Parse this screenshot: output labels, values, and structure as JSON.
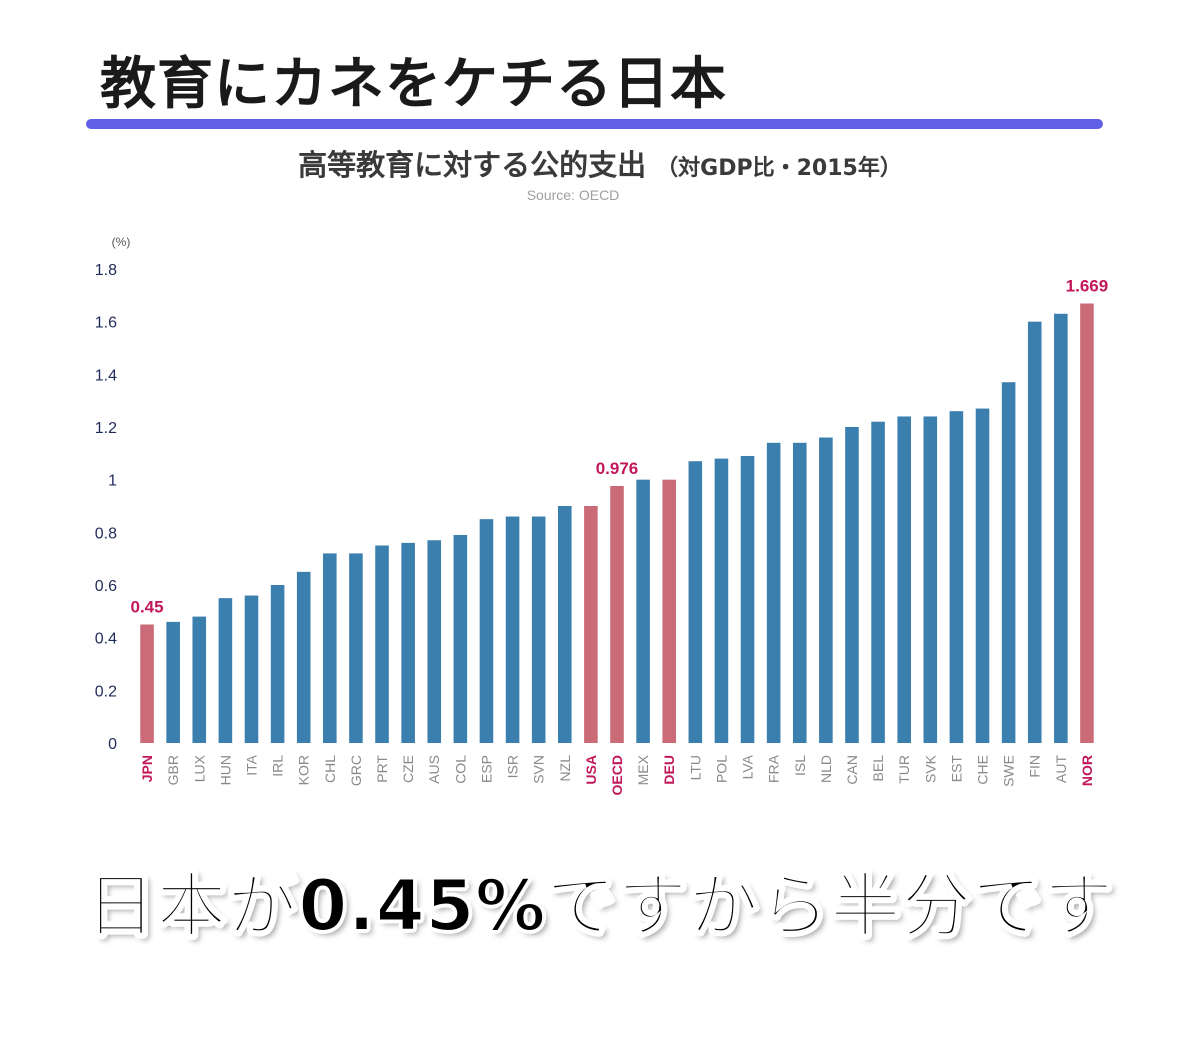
{
  "headline": "教育にカネをケチる日本",
  "chart_title_main": "高等教育に対する公的支出",
  "chart_title_sub": "（対GDP比・2015年）",
  "source": "Source: OECD",
  "caption": "日本が0.45%ですから半分です",
  "colors": {
    "bar_default": "#3a7fad",
    "bar_highlight": "#cc6b78",
    "highlight_text": "#c2185b",
    "rule": "#6060e6"
  },
  "chart_data": {
    "type": "bar",
    "title": "高等教育に対する公的支出（対GDP比・2015年）",
    "ylabel": "(%)",
    "ylim": [
      0,
      1.8
    ],
    "yticks": [
      "0",
      "0.2",
      "0.4",
      "0.6",
      "0.8",
      "1",
      "1.2",
      "1.4",
      "1.6",
      "1.8"
    ],
    "grid": false,
    "categories": [
      "JPN",
      "GBR",
      "LUX",
      "HUN",
      "ITA",
      "IRL",
      "KOR",
      "CHL",
      "GRC",
      "PRT",
      "CZE",
      "AUS",
      "COL",
      "ESP",
      "ISR",
      "SVN",
      "NZL",
      "USA",
      "OECD",
      "MEX",
      "DEU",
      "LTU",
      "POL",
      "LVA",
      "FRA",
      "ISL",
      "NLD",
      "CAN",
      "BEL",
      "TUR",
      "SVK",
      "EST",
      "CHE",
      "SWE",
      "FIN",
      "AUT",
      "NOR"
    ],
    "values": [
      0.45,
      0.46,
      0.48,
      0.55,
      0.56,
      0.6,
      0.65,
      0.72,
      0.72,
      0.75,
      0.76,
      0.77,
      0.79,
      0.85,
      0.86,
      0.86,
      0.9,
      0.9,
      0.976,
      1.0,
      1.0,
      1.07,
      1.08,
      1.09,
      1.14,
      1.14,
      1.16,
      1.2,
      1.22,
      1.24,
      1.24,
      1.26,
      1.27,
      1.37,
      1.6,
      1.63,
      1.669
    ],
    "highlighted": [
      "JPN",
      "USA",
      "OECD",
      "DEU",
      "NOR"
    ],
    "data_labels": [
      {
        "category": "JPN",
        "text": "0.45"
      },
      {
        "category": "OECD",
        "text": "0.976"
      },
      {
        "category": "NOR",
        "text": "1.669"
      }
    ]
  }
}
